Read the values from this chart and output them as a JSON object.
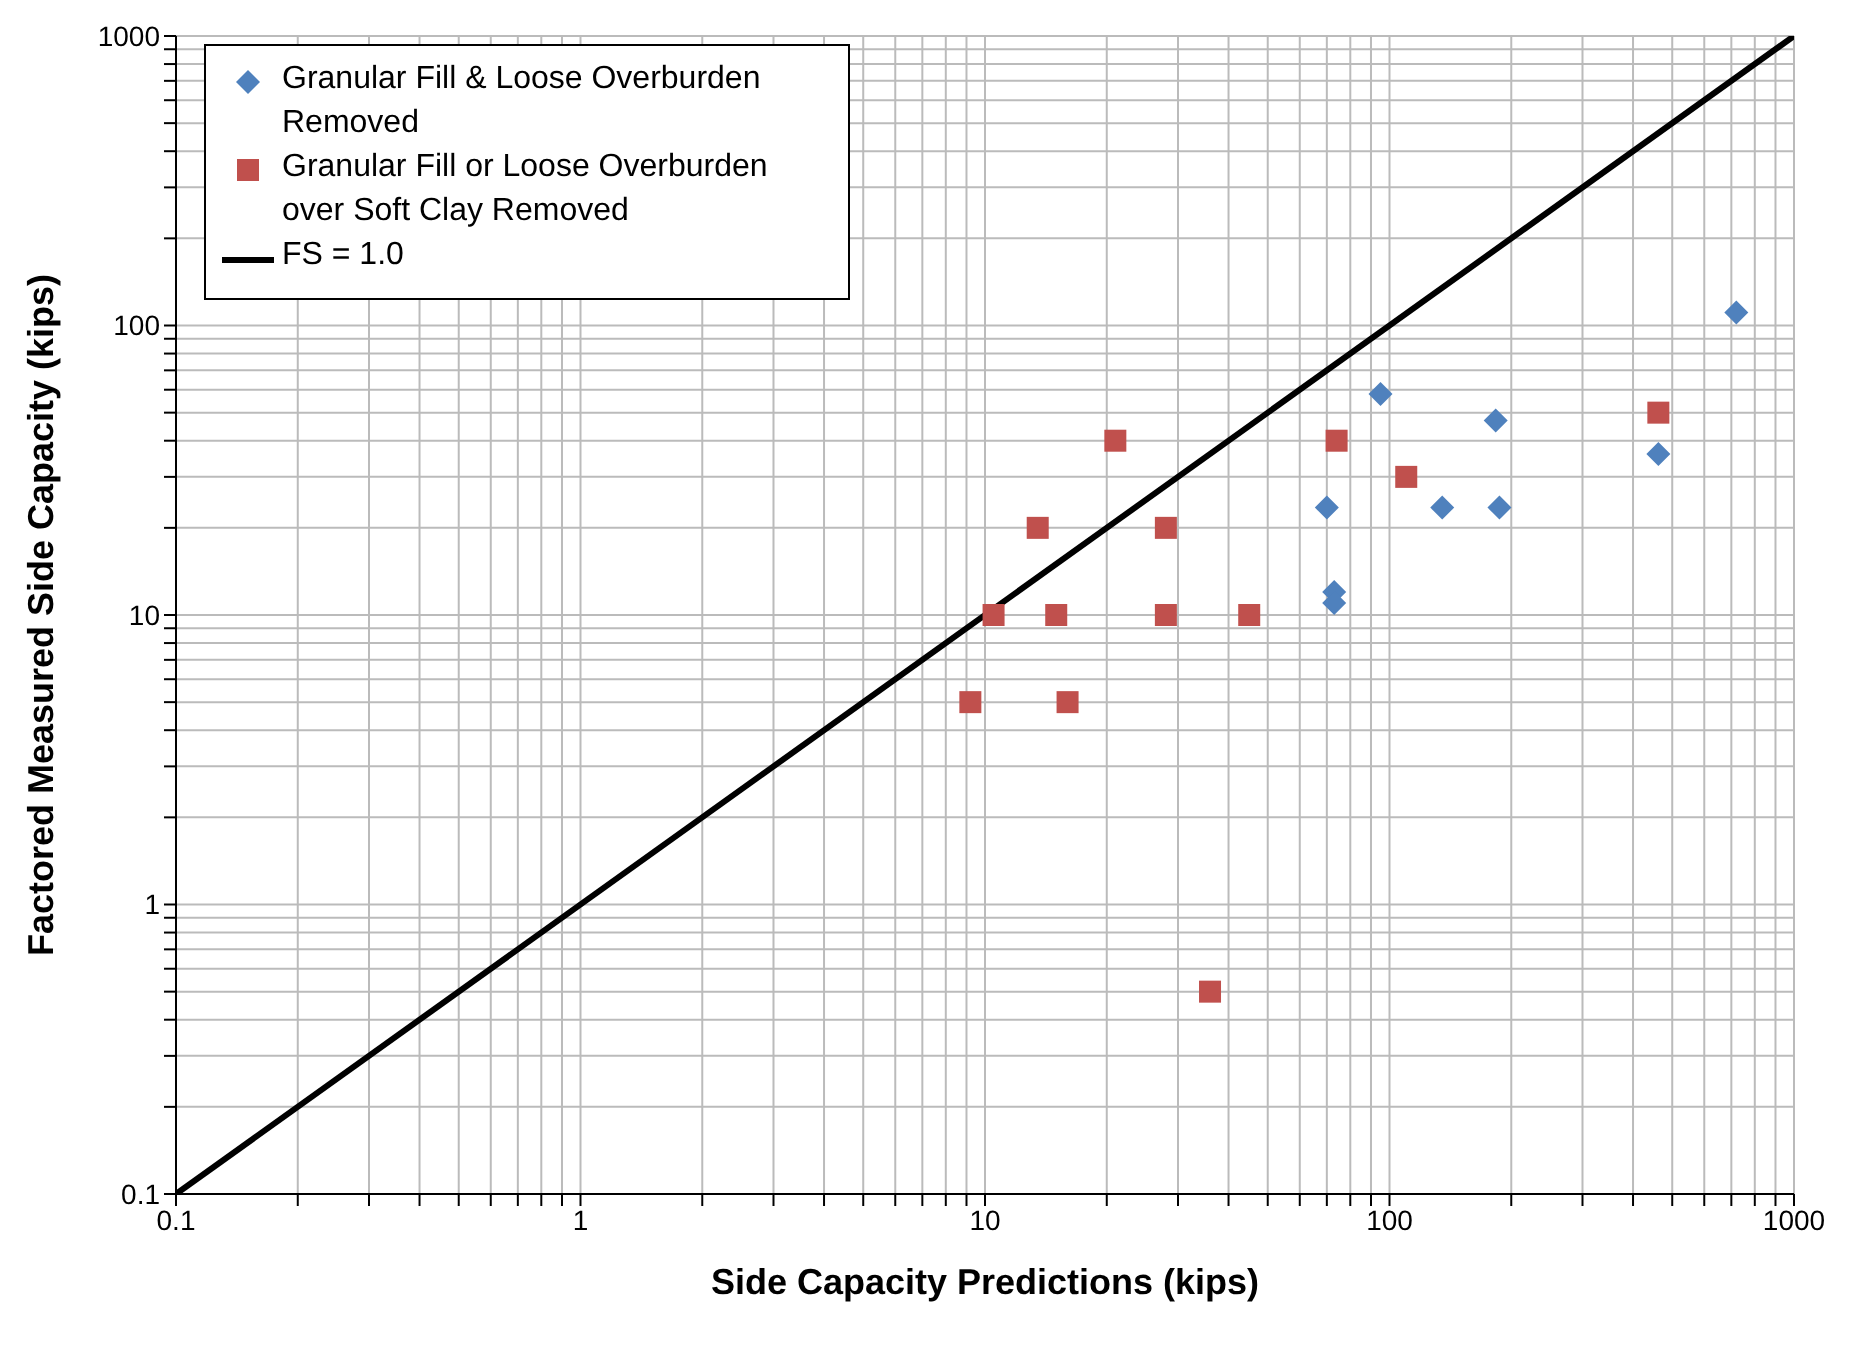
{
  "chart_data": {
    "type": "scatter",
    "xlabel": "Side Capacity Predictions (kips)",
    "ylabel": "Factored Measured Side Capacity (kips)",
    "log": "xy",
    "grid": true,
    "legend": "top left",
    "xlim": [
      0.1,
      1000
    ],
    "ylim": [
      0.1,
      1000
    ],
    "xticks": [
      0.1,
      {
        "value": 0.2,
        "label": null
      },
      {
        "value": 0.3,
        "label": null
      },
      {
        "value": 0.4,
        "label": null
      },
      {
        "value": 0.5,
        "label": null
      },
      {
        "value": 0.6,
        "label": null
      },
      {
        "value": 0.7,
        "label": null
      },
      {
        "value": 0.8,
        "label": null
      },
      {
        "value": 0.9,
        "label": null
      },
      1,
      {
        "value": 2,
        "label": null
      },
      {
        "value": 3,
        "label": null
      },
      {
        "value": 4,
        "label": null
      },
      {
        "value": 5,
        "label": null
      },
      {
        "value": 6,
        "label": null
      },
      {
        "value": 7,
        "label": null
      },
      {
        "value": 8,
        "label": null
      },
      {
        "value": 9,
        "label": null
      },
      10,
      {
        "value": 20,
        "label": null
      },
      {
        "value": 30,
        "label": null
      },
      {
        "value": 40,
        "label": null
      },
      {
        "value": 50,
        "label": null
      },
      {
        "value": 60,
        "label": null
      },
      {
        "value": 70,
        "label": null
      },
      {
        "value": 80,
        "label": null
      },
      {
        "value": 90,
        "label": null
      },
      100,
      {
        "value": 200,
        "label": null
      },
      {
        "value": 300,
        "label": null
      },
      {
        "value": 400,
        "label": null
      },
      {
        "value": 500,
        "label": null
      },
      {
        "value": 600,
        "label": null
      },
      {
        "value": 700,
        "label": null
      },
      {
        "value": 800,
        "label": null
      },
      {
        "value": 900,
        "label": null
      },
      1000
    ],
    "yticks": [
      0.1,
      {
        "value": 0.2,
        "label": null
      },
      {
        "value": 0.3,
        "label": null
      },
      {
        "value": 0.4,
        "label": null
      },
      {
        "value": 0.5,
        "label": null
      },
      {
        "value": 0.6,
        "label": null
      },
      {
        "value": 0.7,
        "label": null
      },
      {
        "value": 0.8,
        "label": null
      },
      {
        "value": 0.9,
        "label": null
      },
      1,
      {
        "value": 2,
        "label": null
      },
      {
        "value": 3,
        "label": null
      },
      {
        "value": 4,
        "label": null
      },
      {
        "value": 5,
        "label": null
      },
      {
        "value": 6,
        "label": null
      },
      {
        "value": 7,
        "label": null
      },
      {
        "value": 8,
        "label": null
      },
      {
        "value": 9,
        "label": null
      },
      10,
      {
        "value": 20,
        "label": null
      },
      {
        "value": 30,
        "label": null
      },
      {
        "value": 40,
        "label": null
      },
      {
        "value": 50,
        "label": null
      },
      {
        "value": 60,
        "label": null
      },
      {
        "value": 70,
        "label": null
      },
      {
        "value": 80,
        "label": null
      },
      {
        "value": 90,
        "label": null
      },
      100,
      {
        "value": 200,
        "label": null
      },
      {
        "value": 300,
        "label": null
      },
      {
        "value": 400,
        "label": null
      },
      {
        "value": 500,
        "label": null
      },
      {
        "value": 600,
        "label": null
      },
      {
        "value": 700,
        "label": null
      },
      {
        "value": 800,
        "label": null
      },
      {
        "value": 900,
        "label": null
      },
      1000
    ],
    "series": [
      {
        "name": "Granular Fill & Loose Overburden Removed",
        "marker": "diamond",
        "color": "#4f81bd",
        "x": [
          70,
          95,
          73,
          73,
          183,
          135,
          187,
          462,
          720
        ],
        "values": [
          23.5,
          58,
          12,
          11,
          47,
          23.5,
          23.5,
          36,
          111
        ]
      },
      {
        "name": "Granular Fill or Loose Overburden over Soft Clay Removed",
        "marker": "square",
        "color": "#c0504d",
        "x": [
          9.2,
          10.5,
          13.5,
          15,
          16,
          21,
          28,
          28,
          45,
          36,
          74,
          110,
          462
        ],
        "values": [
          5,
          10,
          20,
          10,
          5,
          40,
          20,
          10,
          10,
          0.5,
          40,
          30,
          50
        ]
      },
      {
        "name": "FS = 1.0",
        "type": "line",
        "marker": "none",
        "line_style": "solid",
        "color": "#000000",
        "x": [
          0.1,
          1000
        ],
        "values": [
          0.1,
          1000
        ]
      }
    ]
  }
}
